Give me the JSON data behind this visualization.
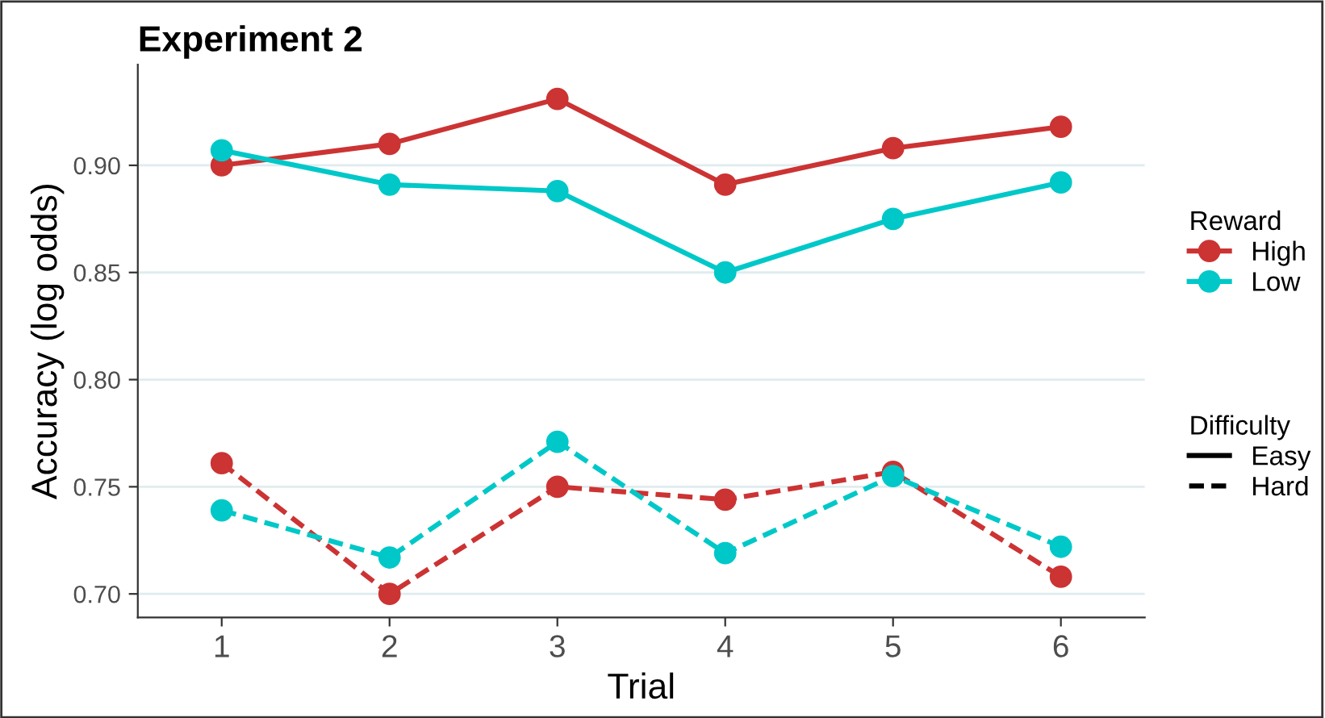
{
  "chart_data": {
    "type": "line",
    "title": "Experiment 2",
    "xlabel": "Trial",
    "ylabel": "Accuracy (log odds)",
    "x": [
      1,
      2,
      3,
      4,
      5,
      6
    ],
    "series": [
      {
        "name": "High",
        "color": "#cc3333",
        "line_style": "solid",
        "values": [
          0.9,
          0.91,
          0.931,
          0.891,
          0.908,
          0.918
        ]
      },
      {
        "name": "Low",
        "color": "#00c8c8",
        "line_style": "solid",
        "values": [
          0.907,
          0.891,
          0.888,
          0.85,
          0.875,
          0.892
        ]
      },
      {
        "color": "#cc3333",
        "line_style": "dashed",
        "values": [
          0.761,
          0.7,
          0.75,
          0.744,
          0.757,
          0.708
        ]
      },
      {
        "color": "#00c8c8",
        "line_style": "dashed",
        "values": [
          0.739,
          0.717,
          0.771,
          0.719,
          0.755,
          0.722
        ]
      }
    ],
    "legend_title": [
      "Reward",
      "Difficulty"
    ],
    "annotations": [
      "Easy",
      "Hard"
    ],
    "xlim": [
      0.5,
      6.5
    ],
    "xticks": [
      1,
      2,
      3,
      4,
      5,
      6
    ],
    "ylim": [
      0.689,
      0.947
    ],
    "yticks": [
      {
        "value": 0.7,
        "label": "0.70"
      },
      {
        "value": 0.75,
        "label": "0.75"
      },
      {
        "value": 0.8,
        "label": "0.80"
      },
      {
        "value": 0.85,
        "label": "0.85"
      },
      {
        "value": 0.9,
        "label": "0.90"
      }
    ],
    "grid": "y",
    "legend": "right",
    "marker": "circle"
  }
}
